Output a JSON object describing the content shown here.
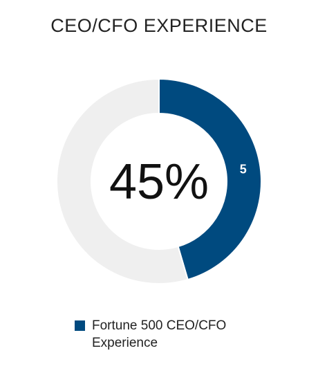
{
  "chart_data": {
    "type": "pie",
    "title": "CEO/CFO EXPERIENCE",
    "center_label": "45%",
    "slices": [
      {
        "name": "Fortune 500 CEO/CFO Experience",
        "value": 5,
        "label": "5",
        "color": "#004a7f"
      },
      {
        "name": "",
        "value": 6,
        "label": "",
        "color": "#efefef"
      }
    ],
    "legend_position": "bottom",
    "legend": [
      {
        "label": "Fortune 500 CEO/CFO Experience",
        "color": "#004a7f"
      }
    ]
  }
}
